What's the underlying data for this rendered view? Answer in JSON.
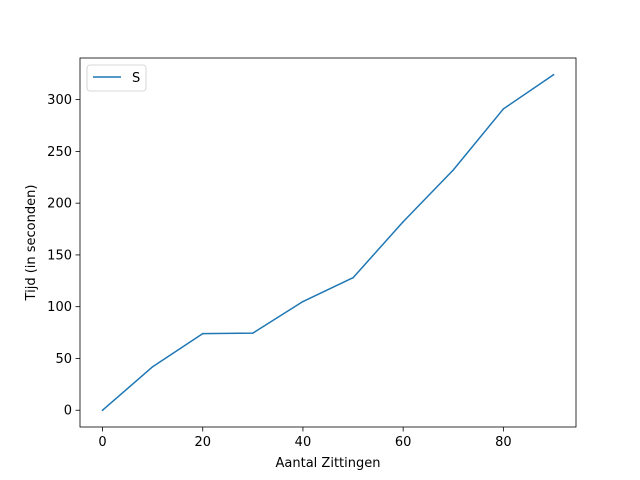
{
  "chart_data": {
    "type": "line",
    "title": "",
    "xlabel": "Aantal Zittingen",
    "ylabel": "Tijd (in seconden)",
    "xlim": [
      -4.5,
      94.5
    ],
    "ylim": [
      -16.2,
      340.2
    ],
    "xticks": [
      0,
      20,
      40,
      60,
      80
    ],
    "yticks": [
      0,
      50,
      100,
      150,
      200,
      250,
      300
    ],
    "grid": false,
    "legend": "top-left",
    "x": [
      0,
      10,
      20,
      30,
      40,
      50,
      60,
      70,
      80,
      90
    ],
    "series": [
      {
        "name": "S",
        "color": "#1f77b4",
        "values": [
          0,
          42,
          74,
          74.5,
          105,
          128,
          182,
          232,
          291,
          324
        ]
      }
    ]
  }
}
